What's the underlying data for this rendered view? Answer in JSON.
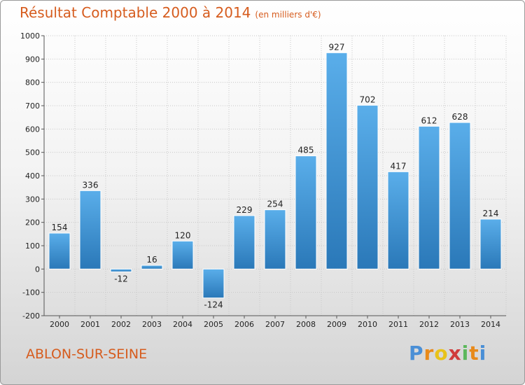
{
  "title": {
    "main": "Résultat Comptable 2000 à 2014",
    "unit": "(en milliers d'€)"
  },
  "city": "ABLON-SUR-SEINE",
  "brand": {
    "letters": [
      "P",
      "r",
      "o",
      "x",
      "i",
      "t",
      "i"
    ],
    "colors": [
      "#4a8fd6",
      "#e88a1a",
      "#e8c21a",
      "#d03b3b",
      "#5cb85c",
      "#e88a1a",
      "#4a8fd6"
    ]
  },
  "colors": {
    "bar_top": "#5aaeea",
    "bar_bottom": "#2a78b8",
    "accent": "#d65c1e"
  },
  "chart_data": {
    "type": "bar",
    "title": "Résultat Comptable 2000 à 2014",
    "ylabel": "(en milliers d'€)",
    "categories": [
      "2000",
      "2001",
      "2002",
      "2003",
      "2004",
      "2005",
      "2006",
      "2007",
      "2008",
      "2009",
      "2010",
      "2011",
      "2012",
      "2013",
      "2014"
    ],
    "values": [
      154,
      336,
      -12,
      16,
      120,
      -124,
      229,
      254,
      485,
      927,
      702,
      417,
      612,
      628,
      214
    ],
    "ylim": [
      -200,
      1000
    ],
    "yticks": [
      -200,
      -100,
      0,
      100,
      200,
      300,
      400,
      500,
      600,
      700,
      800,
      900,
      1000
    ],
    "grid": true
  }
}
